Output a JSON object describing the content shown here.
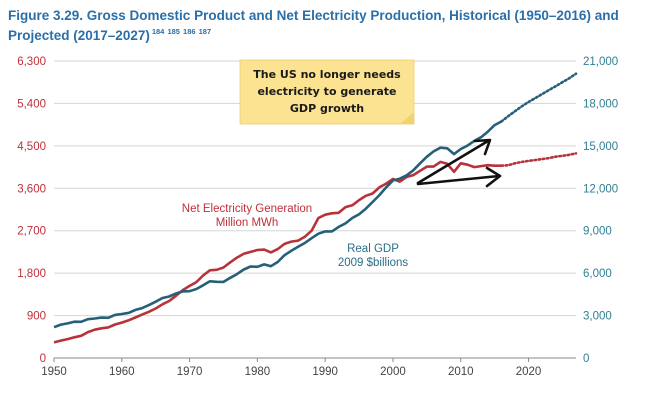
{
  "title": {
    "line1": "Figure 3.29. Gross Domestic Product and Net Electricity Production, Historical (1950–2016) and",
    "line2": "Projected (2017–2027)",
    "refs": "184 185 186 187"
  },
  "colors": {
    "electricity": "#b8323a",
    "gdp": "#265f78",
    "grid": "#d5d5d5",
    "note_bg": "#fbe391"
  },
  "annotation": {
    "lines": [
      "The US no longer needs",
      "electricity to generate",
      "GDP growth"
    ]
  },
  "chart_data": {
    "type": "line",
    "title": "Gross Domestic Product and Net Electricity Production, Historical (1950–2016) and Projected (2017–2027)",
    "x_ticks": [
      1950,
      1960,
      1970,
      1980,
      1990,
      2000,
      2010,
      2020
    ],
    "xlim": [
      1950,
      2027
    ],
    "left_axis": {
      "ylim": [
        0,
        6300
      ],
      "ticks": [
        "0",
        "900",
        "1,800",
        "2,700",
        "3,600",
        "4,500",
        "5,400",
        "6,300"
      ]
    },
    "right_axis": {
      "ylim": [
        0,
        21000
      ],
      "ticks": [
        "0",
        "3,000",
        "6,000",
        "9,000",
        "12,000",
        "15,000",
        "18,000",
        "21,000"
      ]
    },
    "series": [
      {
        "name": "Net Electricity Generation",
        "label_lines": [
          "Net Electricity Generation",
          "Million MWh"
        ],
        "axis": "left",
        "historical_x": [
          1950,
          1951,
          1952,
          1953,
          1954,
          1955,
          1956,
          1957,
          1958,
          1959,
          1960,
          1961,
          1962,
          1963,
          1964,
          1965,
          1966,
          1967,
          1968,
          1969,
          1970,
          1971,
          1972,
          1973,
          1974,
          1975,
          1976,
          1977,
          1978,
          1979,
          1980,
          1981,
          1982,
          1983,
          1984,
          1985,
          1986,
          1987,
          1988,
          1989,
          1990,
          1991,
          1992,
          1993,
          1994,
          1995,
          1996,
          1997,
          1998,
          1999,
          2000,
          2001,
          2002,
          2003,
          2004,
          2005,
          2006,
          2007,
          2008,
          2009,
          2010,
          2011,
          2012,
          2013,
          2014,
          2015,
          2016
        ],
        "historical_y": [
          330,
          370,
          400,
          440,
          470,
          550,
          600,
          630,
          650,
          710,
          750,
          800,
          860,
          920,
          980,
          1050,
          1140,
          1210,
          1320,
          1440,
          1530,
          1610,
          1750,
          1860,
          1870,
          1920,
          2030,
          2130,
          2210,
          2250,
          2290,
          2300,
          2240,
          2310,
          2420,
          2470,
          2490,
          2570,
          2700,
          2970,
          3040,
          3070,
          3080,
          3200,
          3240,
          3350,
          3440,
          3490,
          3620,
          3700,
          3800,
          3740,
          3840,
          3880,
          3970,
          4060,
          4060,
          4160,
          4120,
          3950,
          4130,
          4100,
          4050,
          4070,
          4090,
          4080,
          4080
        ],
        "projected_x": [
          2016,
          2017,
          2018,
          2019,
          2020,
          2021,
          2022,
          2023,
          2024,
          2025,
          2026,
          2027
        ],
        "projected_y": [
          4080,
          4090,
          4130,
          4160,
          4180,
          4200,
          4220,
          4240,
          4270,
          4290,
          4310,
          4340
        ]
      },
      {
        "name": "Real GDP",
        "label_lines": [
          "Real GDP",
          "2009 $billions"
        ],
        "axis": "right",
        "historical_x": [
          1950,
          1951,
          1952,
          1953,
          1954,
          1955,
          1956,
          1957,
          1958,
          1959,
          1960,
          1961,
          1962,
          1963,
          1964,
          1965,
          1966,
          1967,
          1968,
          1969,
          1970,
          1971,
          1972,
          1973,
          1974,
          1975,
          1976,
          1977,
          1978,
          1979,
          1980,
          1981,
          1982,
          1983,
          1984,
          1985,
          1986,
          1987,
          1988,
          1989,
          1990,
          1991,
          1992,
          1993,
          1994,
          1995,
          1996,
          1997,
          1998,
          1999,
          2000,
          2001,
          2002,
          2003,
          2004,
          2005,
          2006,
          2007,
          2008,
          2009,
          2010,
          2011,
          2012,
          2013,
          2014,
          2015,
          2016
        ],
        "historical_y": [
          2180,
          2360,
          2450,
          2570,
          2560,
          2740,
          2790,
          2860,
          2840,
          3050,
          3110,
          3190,
          3400,
          3530,
          3740,
          3980,
          4240,
          4350,
          4560,
          4710,
          4720,
          4880,
          5140,
          5420,
          5390,
          5380,
          5670,
          5930,
          6260,
          6470,
          6450,
          6620,
          6490,
          6790,
          7270,
          7580,
          7860,
          8130,
          8470,
          8790,
          8950,
          8950,
          9270,
          9520,
          9900,
          10170,
          10560,
          11030,
          11520,
          12070,
          12560,
          12680,
          12910,
          13270,
          13770,
          14230,
          14610,
          14870,
          14830,
          14420,
          14780,
          15020,
          15350,
          15610,
          16010,
          16470,
          16720
        ],
        "projected_x": [
          2016,
          2017,
          2018,
          2019,
          2020,
          2021,
          2022,
          2023,
          2024,
          2025,
          2026,
          2027
        ],
        "projected_y": [
          16720,
          17100,
          17450,
          17800,
          18100,
          18380,
          18660,
          18940,
          19220,
          19500,
          19780,
          20100
        ]
      }
    ]
  }
}
